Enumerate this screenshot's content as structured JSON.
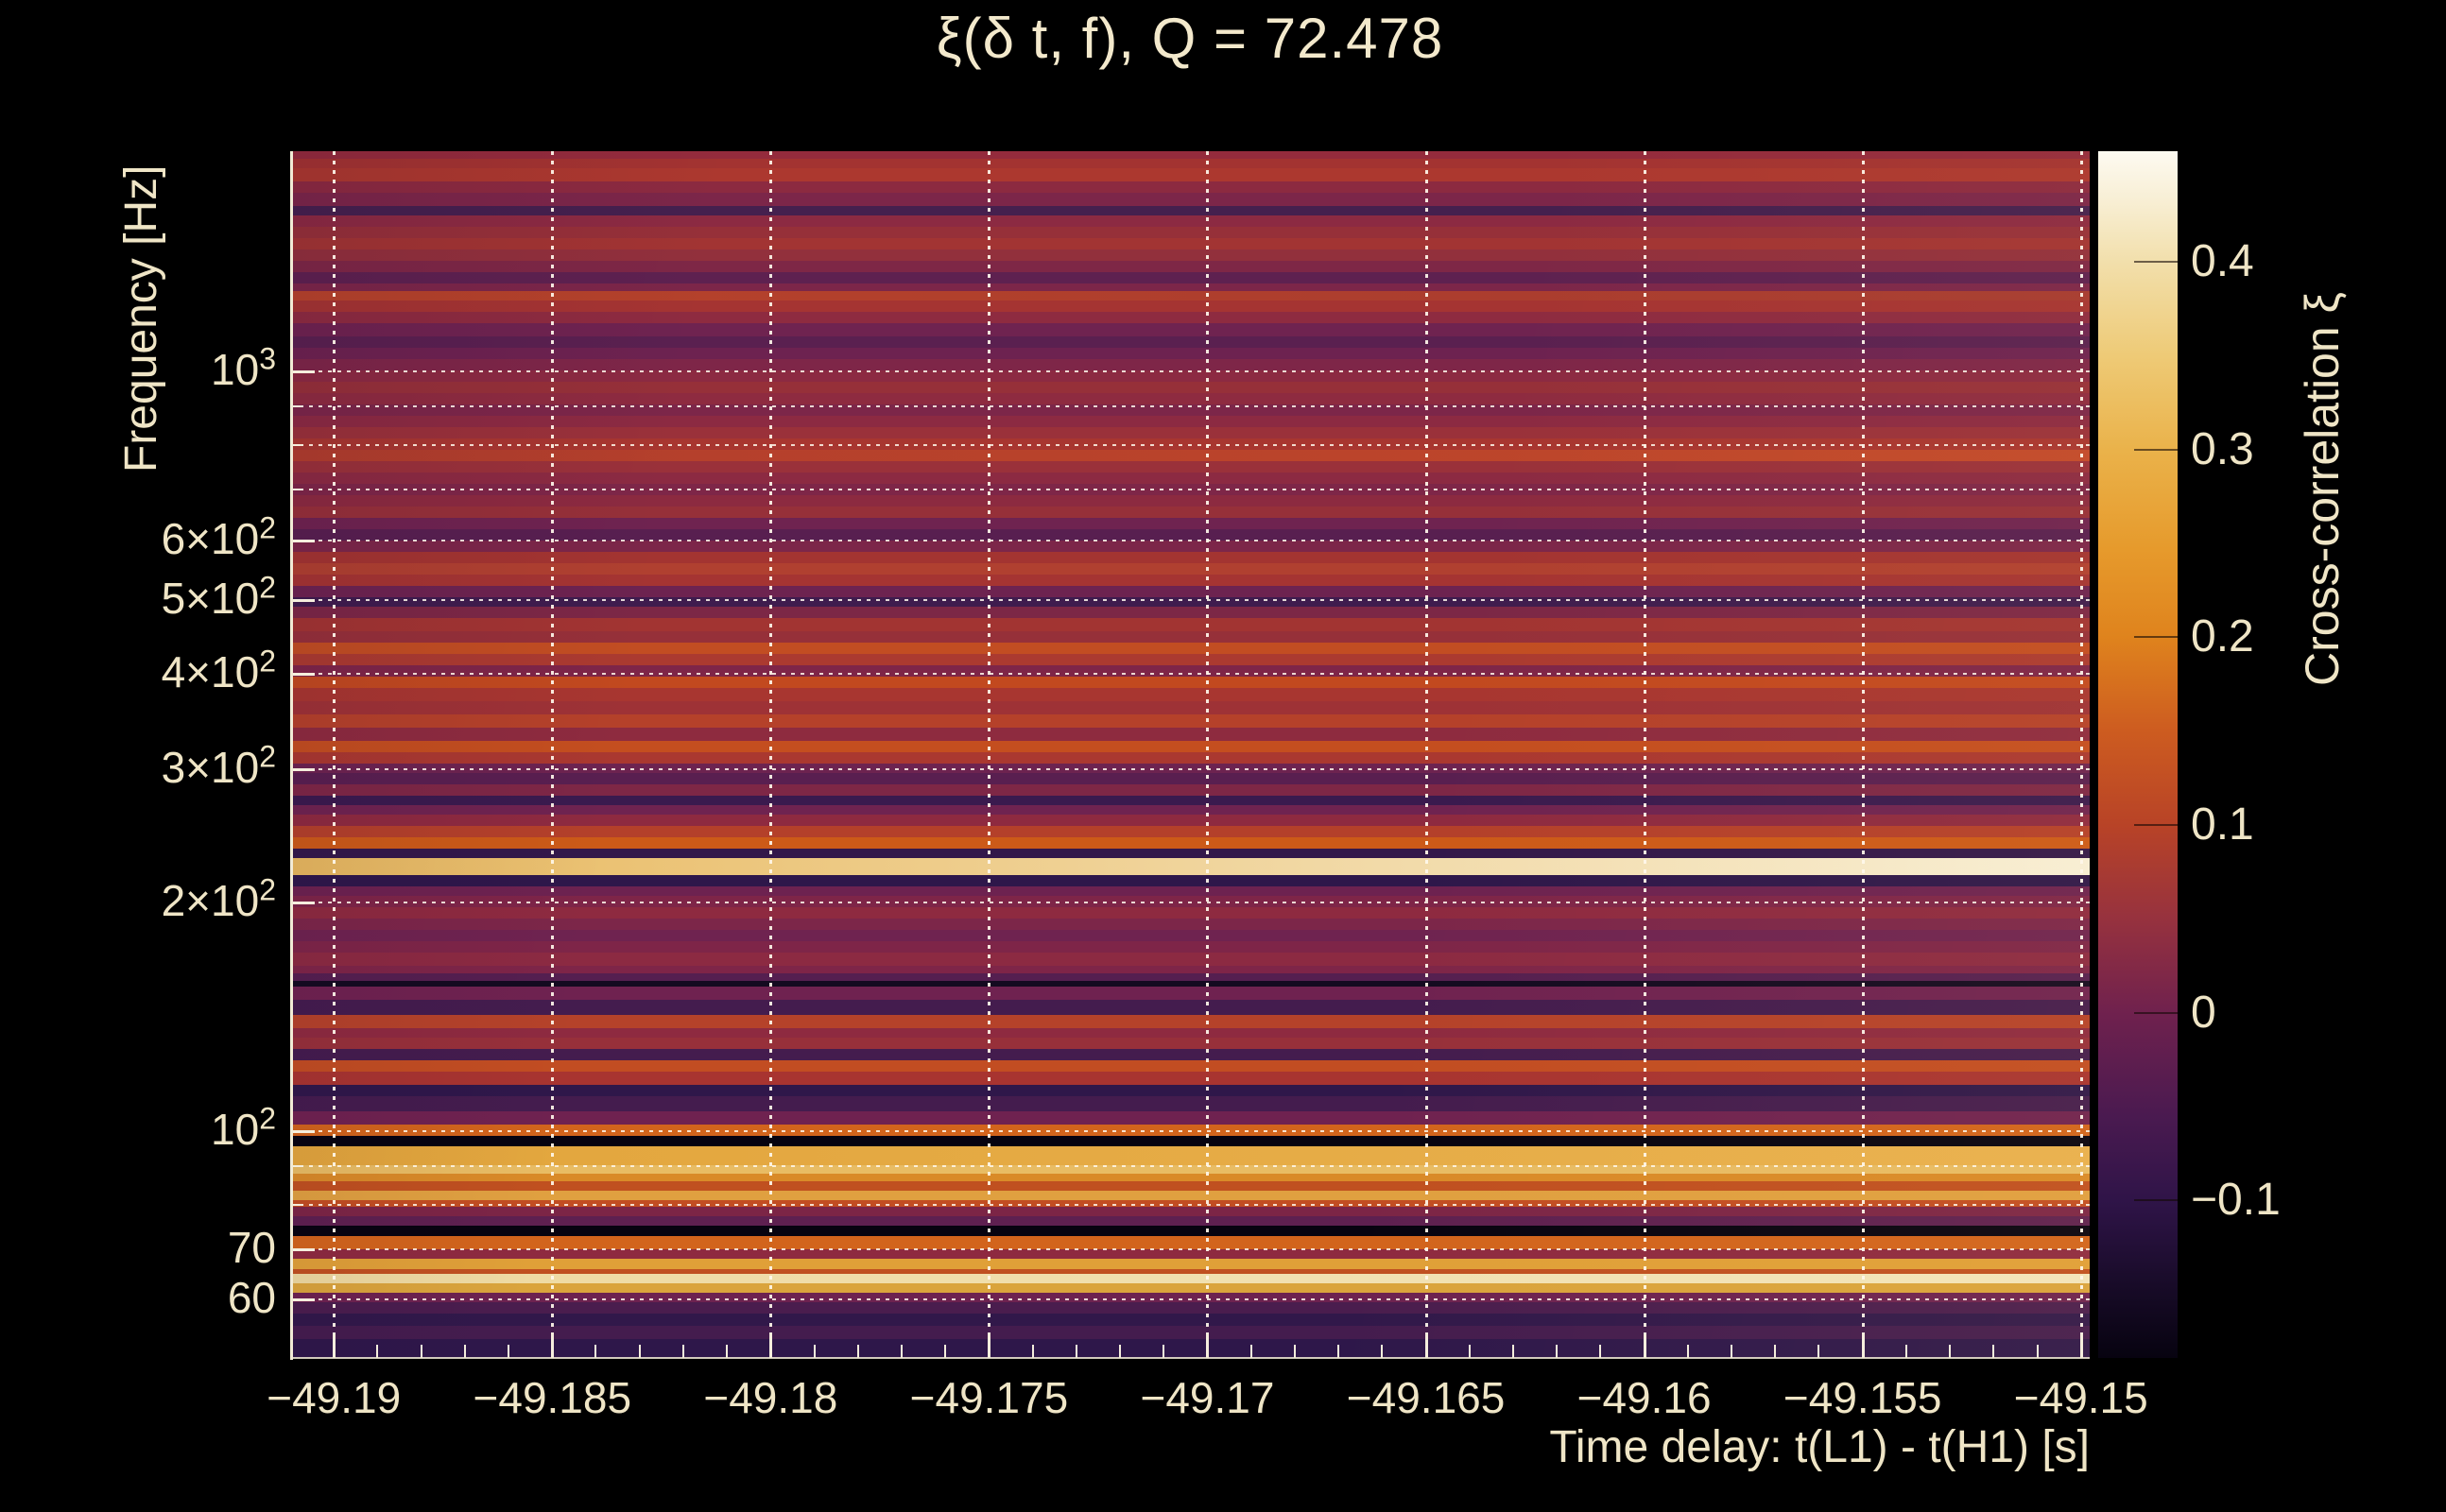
{
  "title": "ξ(δ t, f), Q = 72.478",
  "colors": {
    "background": "#000000",
    "foreground_text": "#efe5c6",
    "axis_frame": "#f2ebd6",
    "gridline": "#fff8eb",
    "plot_base": "#7e2548"
  },
  "chart_data": {
    "type": "heatmap",
    "title": "ξ(δ t, f), Q = 72.478",
    "q_value": 72.478,
    "xlabel": "Time delay: t(L1) - t(H1) [s]",
    "ylabel": "Frequency [Hz]",
    "colorbar_label": "Cross-correlation ξ",
    "x_range": [
      -49.191,
      -49.1498
    ],
    "x_ticks": [
      {
        "label": "−49.19",
        "value": -49.19
      },
      {
        "label": "−49.185",
        "value": -49.185
      },
      {
        "label": "−49.18",
        "value": -49.18
      },
      {
        "label": "−49.175",
        "value": -49.175
      },
      {
        "label": "−49.17",
        "value": -49.17
      },
      {
        "label": "−49.165",
        "value": -49.165
      },
      {
        "label": "−49.16",
        "value": -49.16
      },
      {
        "label": "−49.155",
        "value": -49.155
      },
      {
        "label": "−49.15",
        "value": -49.15
      }
    ],
    "x_minor_step": 0.001,
    "y_scale": "log",
    "y_range_hz": [
      50.3,
      1950
    ],
    "y_ticks": [
      {
        "main": "10",
        "sup": "3",
        "f": 1000
      },
      {
        "main": "6×10",
        "sup": "2",
        "f": 600
      },
      {
        "main": "5×10",
        "sup": "2",
        "f": 500
      },
      {
        "main": "4×10",
        "sup": "2",
        "f": 400
      },
      {
        "main": "3×10",
        "sup": "2",
        "f": 300
      },
      {
        "main": "2×10",
        "sup": "2",
        "f": 200
      },
      {
        "main": "10",
        "sup": "2",
        "f": 100
      },
      {
        "main": "70",
        "sup": "",
        "f": 70
      },
      {
        "main": "60",
        "sup": "",
        "f": 60
      }
    ],
    "y_gridlines_hz": [
      1000,
      900,
      800,
      700,
      600,
      500,
      400,
      300,
      200,
      100,
      90,
      80,
      70,
      60
    ],
    "grid_on": true,
    "colorbar": {
      "label": "Cross-correlation ξ",
      "range": [
        -0.184,
        0.459
      ],
      "ticks": [
        {
          "label": "0.4",
          "value": 0.4
        },
        {
          "label": "0.3",
          "value": 0.3
        },
        {
          "label": "0.2",
          "value": 0.2
        },
        {
          "label": "0.1",
          "value": 0.1
        },
        {
          "label": "0",
          "value": 0.0
        },
        {
          "label": "−0.1",
          "value": -0.1
        }
      ]
    },
    "notable_features": [
      {
        "f_hz": 223,
        "xi": 0.42,
        "desc": "brightest cream-white correlation stripe, intensifies toward right edge"
      },
      {
        "f_hz": 239,
        "xi": 0.16,
        "desc": "orange stripe just above bright line"
      },
      {
        "f_hz": 232,
        "xi": -0.11,
        "desc": "dark band between orange and bright stripe"
      },
      {
        "f_hz": 97,
        "xi": -0.18,
        "desc": "near-black anticorrelation band"
      },
      {
        "f_hz": 93,
        "xi": 0.27,
        "desc": "broad gold high-correlation band"
      },
      {
        "f_hz": 74,
        "xi": -0.18,
        "desc": "near-black anticorrelation band"
      },
      {
        "f_hz": 71,
        "xi": 0.16,
        "desc": "orange stripe"
      },
      {
        "f_hz": 67,
        "xi": 0.25,
        "desc": "gold stripe"
      },
      {
        "f_hz": 64,
        "xi": 0.38,
        "desc": "pale gold bright stripe"
      },
      {
        "f_hz": 605,
        "xi": 0.13,
        "desc": "orange stripe near 600 Hz"
      },
      {
        "f_hz": 432,
        "xi": 0.13,
        "desc": "orange stripe"
      },
      {
        "f_hz": 390,
        "xi": 0.13,
        "desc": "orange stripe"
      },
      {
        "f_hz": 321,
        "xi": 0.13,
        "desc": "orange stripe"
      },
      {
        "f_hz": 139,
        "xi": 0.09,
        "desc": "red-orange stripe"
      },
      {
        "f_hz": 55,
        "xi": -0.12,
        "desc": "dark purple region at bottom edge"
      }
    ],
    "stripes_note": "horizontal bands: [y0_px, y1_px, color, xi_estimate, optional right-side color] on a 1277px-tall log-frequency axis, y0=top of plot (1950 Hz)",
    "stripes": [
      [
        0,
        8,
        "#942b3c",
        0.03
      ],
      [
        8,
        18,
        "#a33331",
        0.06
      ],
      [
        18,
        32,
        "#ac382f",
        0.07
      ],
      [
        32,
        44,
        "#8c2a40",
        0.02
      ],
      [
        44,
        58,
        "#7c2649",
        0.0
      ],
      [
        58,
        68,
        "#45204e",
        -0.08
      ],
      [
        68,
        80,
        "#8c2a42",
        0.02
      ],
      [
        80,
        92,
        "#963039",
        0.04
      ],
      [
        92,
        104,
        "#a23433",
        0.06
      ],
      [
        104,
        116,
        "#92303c",
        0.03
      ],
      [
        116,
        128,
        "#7e2746",
        0.0
      ],
      [
        128,
        140,
        "#5e2150",
        -0.06
      ],
      [
        140,
        148,
        "#7c2649",
        0.0
      ],
      [
        148,
        158,
        "#b8432a",
        0.1,
        "#a53a30"
      ],
      [
        158,
        170,
        "#a53432",
        0.06
      ],
      [
        170,
        182,
        "#8e2b40",
        0.02
      ],
      [
        182,
        196,
        "#6f2350",
        -0.03
      ],
      [
        196,
        208,
        "#5a2050",
        -0.06
      ],
      [
        208,
        220,
        "#6d2250",
        -0.03
      ],
      [
        220,
        232,
        "#7e2648",
        0.0
      ],
      [
        232,
        244,
        "#8c2a42",
        0.02
      ],
      [
        244,
        256,
        "#963039",
        0.04
      ],
      [
        256,
        268,
        "#8e2b40",
        0.02
      ],
      [
        268,
        280,
        "#7c2649",
        0.0
      ],
      [
        280,
        292,
        "#8c2a42",
        0.02
      ],
      [
        292,
        304,
        "#9a313a",
        0.05
      ],
      [
        304,
        316,
        "#a83630",
        0.07
      ],
      [
        316,
        328,
        "#b13d2c",
        0.09,
        "#c2492a"
      ],
      [
        328,
        340,
        "#9a313a",
        0.05
      ],
      [
        340,
        352,
        "#8c2a42",
        0.02
      ],
      [
        352,
        364,
        "#7e2648",
        0.0
      ],
      [
        364,
        376,
        "#8c2a40",
        0.02
      ],
      [
        376,
        388,
        "#963039",
        0.04
      ],
      [
        388,
        400,
        "#6f2350",
        -0.03
      ],
      [
        400,
        412,
        "#581f50",
        -0.06
      ],
      [
        412,
        424,
        "#7c2649",
        0.0
      ],
      [
        424,
        436,
        "#a33431",
        0.06
      ],
      [
        436,
        448,
        "#b04030",
        0.08
      ],
      [
        448,
        460,
        "#a53432",
        0.06
      ],
      [
        460,
        472,
        "#6d2350",
        -0.03
      ],
      [
        472,
        482,
        "#3f1c4e",
        -0.1
      ],
      [
        482,
        494,
        "#7c2746",
        0.0
      ],
      [
        494,
        508,
        "#a23432",
        0.06
      ],
      [
        508,
        520,
        "#963039",
        0.04
      ],
      [
        520,
        532,
        "#c24d22",
        0.13
      ],
      [
        532,
        544,
        "#ab3a30",
        0.07
      ],
      [
        544,
        556,
        "#7e2548",
        0.0
      ],
      [
        556,
        568,
        "#c2491f",
        0.13
      ],
      [
        568,
        582,
        "#a83630",
        0.07
      ],
      [
        582,
        596,
        "#9e3236",
        0.05
      ],
      [
        596,
        610,
        "#b5412a",
        0.09
      ],
      [
        610,
        624,
        "#8e2b3f",
        0.02
      ],
      [
        624,
        636,
        "#c44e1f",
        0.13
      ],
      [
        636,
        648,
        "#aa3830",
        0.07
      ],
      [
        648,
        658,
        "#6d2350",
        -0.03
      ],
      [
        658,
        670,
        "#591f50",
        -0.06
      ],
      [
        670,
        682,
        "#7e2746",
        0.0
      ],
      [
        682,
        692,
        "#3a1a4e",
        -0.1
      ],
      [
        692,
        702,
        "#6f2350",
        -0.03
      ],
      [
        702,
        714,
        "#8e2a40",
        0.02
      ],
      [
        714,
        726,
        "#b4402a",
        0.09
      ],
      [
        726,
        738,
        "#cc5a18",
        0.16
      ],
      [
        738,
        748,
        "#33184a",
        -0.11
      ],
      [
        748,
        766,
        "#e8b85e",
        0.42,
        "#f8f0d8"
      ],
      [
        766,
        778,
        "#2e174a",
        -0.12
      ],
      [
        778,
        788,
        "#6d2250",
        -0.03
      ],
      [
        788,
        800,
        "#7e2548",
        0.0
      ],
      [
        800,
        812,
        "#8e2a40",
        0.02
      ],
      [
        812,
        824,
        "#7c2649",
        0.0
      ],
      [
        824,
        836,
        "#6f2350",
        -0.03
      ],
      [
        836,
        848,
        "#7e2548",
        0.0
      ],
      [
        848,
        862,
        "#8c2a42",
        0.02
      ],
      [
        862,
        870,
        "#7e2548",
        0.0
      ],
      [
        870,
        878,
        "#551f50",
        -0.07
      ],
      [
        878,
        884,
        "#140a20",
        -0.16
      ],
      [
        884,
        898,
        "#6f2250",
        -0.03
      ],
      [
        898,
        914,
        "#441c4e",
        -0.09
      ],
      [
        914,
        928,
        "#b5422a",
        0.09
      ],
      [
        928,
        938,
        "#8e2a40",
        0.02
      ],
      [
        938,
        950,
        "#97303a",
        0.04
      ],
      [
        950,
        962,
        "#441c4e",
        -0.09
      ],
      [
        962,
        974,
        "#c24d22",
        0.13
      ],
      [
        974,
        988,
        "#a83430",
        0.07
      ],
      [
        988,
        1000,
        "#2f174a",
        -0.12
      ],
      [
        1000,
        1016,
        "#441c4e",
        -0.09
      ],
      [
        1016,
        1030,
        "#6f2250",
        -0.03
      ],
      [
        1030,
        1042,
        "#d2641c",
        0.16
      ],
      [
        1042,
        1053,
        "#060310",
        -0.18
      ],
      [
        1053,
        1073,
        "#e2a53c",
        0.26,
        "#e9b14e"
      ],
      [
        1073,
        1082,
        "#e8bc64",
        0.3
      ],
      [
        1082,
        1090,
        "#d98a28",
        0.2
      ],
      [
        1090,
        1100,
        "#c05020",
        0.12
      ],
      [
        1100,
        1110,
        "#e0a040",
        0.25
      ],
      [
        1110,
        1117,
        "#c24d22",
        0.13
      ],
      [
        1117,
        1127,
        "#7c2546",
        0.0
      ],
      [
        1127,
        1137,
        "#5e2050",
        -0.06
      ],
      [
        1137,
        1148,
        "#070310",
        -0.18
      ],
      [
        1148,
        1162,
        "#d2641c",
        0.16
      ],
      [
        1162,
        1172,
        "#8e2a40",
        0.02
      ],
      [
        1172,
        1183,
        "#e0a038",
        0.25
      ],
      [
        1183,
        1188,
        "#c05020",
        0.12
      ],
      [
        1188,
        1198,
        "#eed9a0",
        0.38,
        "#f3e6bd"
      ],
      [
        1198,
        1208,
        "#daa43c",
        0.24
      ],
      [
        1208,
        1218,
        "#6d2250",
        -0.03
      ],
      [
        1218,
        1230,
        "#4a1d4e",
        -0.08
      ],
      [
        1230,
        1243,
        "#31184a",
        -0.11
      ],
      [
        1243,
        1257,
        "#441c4e",
        -0.09
      ],
      [
        1257,
        1277,
        "#2e174a",
        -0.12
      ]
    ]
  }
}
